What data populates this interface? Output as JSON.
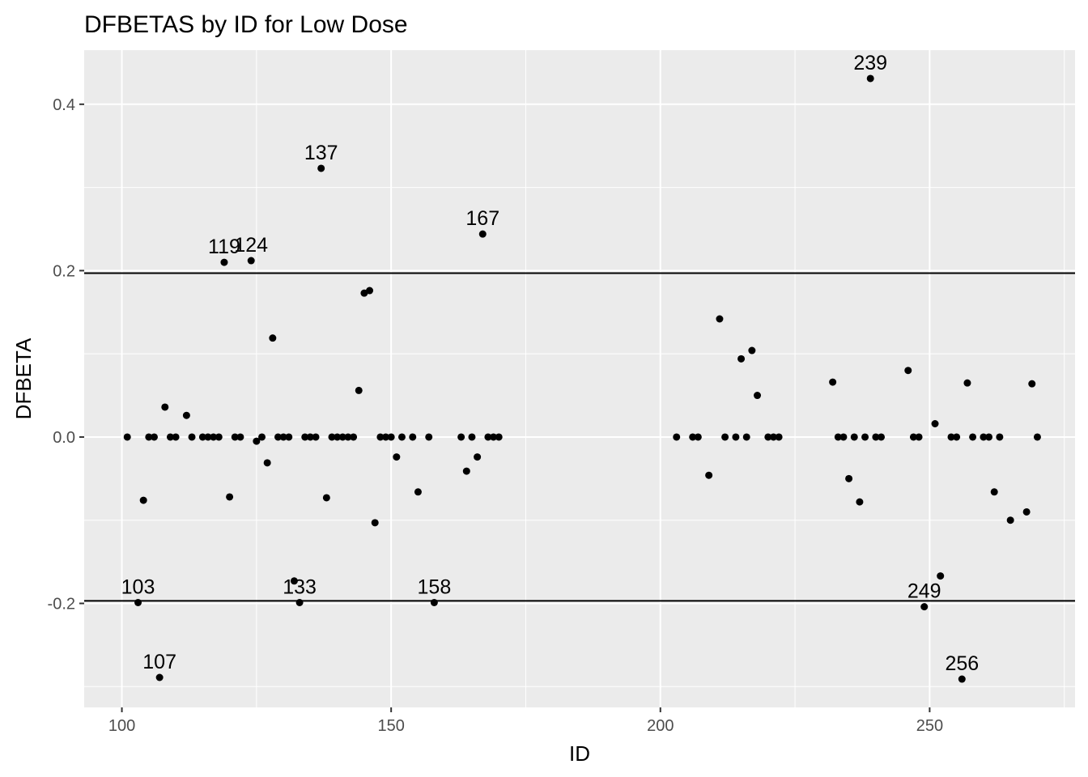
{
  "chart_data": {
    "type": "scatter",
    "title": "DFBETAS by ID for Low Dose",
    "xlabel": "ID",
    "ylabel": "DFBETA",
    "xlim": [
      93,
      277
    ],
    "ylim": [
      -0.325,
      0.465
    ],
    "x_ticks": [
      100,
      150,
      200,
      250
    ],
    "x_tick_labels": [
      "100",
      "150",
      "200",
      "250"
    ],
    "y_ticks": [
      -0.2,
      0.0,
      0.2,
      0.4
    ],
    "y_tick_labels": [
      "-0.2",
      "0.0",
      "0.2",
      "0.4"
    ],
    "grid": true,
    "point_color": "#000000",
    "panel_background": "#ebebeb",
    "grid_color": "#ffffff",
    "reference_lines": [
      0.197,
      -0.197
    ],
    "points": [
      {
        "x": 101,
        "y": 0.0
      },
      {
        "x": 103,
        "y": -0.199
      },
      {
        "x": 104,
        "y": -0.076
      },
      {
        "x": 105,
        "y": 0.0
      },
      {
        "x": 106,
        "y": 0.0
      },
      {
        "x": 107,
        "y": -0.289
      },
      {
        "x": 108,
        "y": 0.036
      },
      {
        "x": 109,
        "y": 0.0
      },
      {
        "x": 110,
        "y": 0.0
      },
      {
        "x": 112,
        "y": 0.026
      },
      {
        "x": 113,
        "y": 0.0
      },
      {
        "x": 115,
        "y": 0.0
      },
      {
        "x": 116,
        "y": 0.0
      },
      {
        "x": 117,
        "y": 0.0
      },
      {
        "x": 118,
        "y": 0.0
      },
      {
        "x": 119,
        "y": 0.21
      },
      {
        "x": 120,
        "y": -0.072
      },
      {
        "x": 121,
        "y": 0.0
      },
      {
        "x": 122,
        "y": 0.0
      },
      {
        "x": 124,
        "y": 0.212
      },
      {
        "x": 125,
        "y": -0.005
      },
      {
        "x": 126,
        "y": 0.0
      },
      {
        "x": 127,
        "y": -0.031
      },
      {
        "x": 128,
        "y": 0.119
      },
      {
        "x": 129,
        "y": 0.0
      },
      {
        "x": 130,
        "y": 0.0
      },
      {
        "x": 131,
        "y": 0.0
      },
      {
        "x": 132,
        "y": -0.173
      },
      {
        "x": 133,
        "y": -0.199
      },
      {
        "x": 134,
        "y": 0.0
      },
      {
        "x": 135,
        "y": 0.0
      },
      {
        "x": 136,
        "y": 0.0
      },
      {
        "x": 137,
        "y": 0.323
      },
      {
        "x": 138,
        "y": -0.073
      },
      {
        "x": 139,
        "y": 0.0
      },
      {
        "x": 140,
        "y": 0.0
      },
      {
        "x": 141,
        "y": 0.0
      },
      {
        "x": 142,
        "y": 0.0
      },
      {
        "x": 143,
        "y": 0.0
      },
      {
        "x": 144,
        "y": 0.056
      },
      {
        "x": 145,
        "y": 0.173
      },
      {
        "x": 146,
        "y": 0.176
      },
      {
        "x": 147,
        "y": -0.103
      },
      {
        "x": 148,
        "y": 0.0
      },
      {
        "x": 149,
        "y": 0.0
      },
      {
        "x": 150,
        "y": 0.0
      },
      {
        "x": 151,
        "y": -0.024
      },
      {
        "x": 152,
        "y": 0.0
      },
      {
        "x": 154,
        "y": 0.0
      },
      {
        "x": 155,
        "y": -0.066
      },
      {
        "x": 157,
        "y": 0.0
      },
      {
        "x": 158,
        "y": -0.199
      },
      {
        "x": 163,
        "y": 0.0
      },
      {
        "x": 164,
        "y": -0.041
      },
      {
        "x": 165,
        "y": 0.0
      },
      {
        "x": 166,
        "y": -0.024
      },
      {
        "x": 167,
        "y": 0.244
      },
      {
        "x": 168,
        "y": 0.0
      },
      {
        "x": 169,
        "y": 0.0
      },
      {
        "x": 170,
        "y": 0.0
      },
      {
        "x": 203,
        "y": 0.0
      },
      {
        "x": 206,
        "y": 0.0
      },
      {
        "x": 207,
        "y": 0.0
      },
      {
        "x": 209,
        "y": -0.046
      },
      {
        "x": 211,
        "y": 0.142
      },
      {
        "x": 212,
        "y": 0.0
      },
      {
        "x": 214,
        "y": 0.0
      },
      {
        "x": 215,
        "y": 0.094
      },
      {
        "x": 216,
        "y": 0.0
      },
      {
        "x": 217,
        "y": 0.104
      },
      {
        "x": 218,
        "y": 0.05
      },
      {
        "x": 220,
        "y": 0.0
      },
      {
        "x": 221,
        "y": 0.0
      },
      {
        "x": 222,
        "y": 0.0
      },
      {
        "x": 232,
        "y": 0.066
      },
      {
        "x": 233,
        "y": 0.0
      },
      {
        "x": 234,
        "y": 0.0
      },
      {
        "x": 235,
        "y": -0.05
      },
      {
        "x": 236,
        "y": 0.0
      },
      {
        "x": 237,
        "y": -0.078
      },
      {
        "x": 238,
        "y": 0.0
      },
      {
        "x": 239,
        "y": 0.431
      },
      {
        "x": 240,
        "y": 0.0
      },
      {
        "x": 241,
        "y": 0.0
      },
      {
        "x": 246,
        "y": 0.08
      },
      {
        "x": 247,
        "y": 0.0
      },
      {
        "x": 248,
        "y": 0.0
      },
      {
        "x": 249,
        "y": -0.204
      },
      {
        "x": 251,
        "y": 0.016
      },
      {
        "x": 252,
        "y": -0.167
      },
      {
        "x": 254,
        "y": 0.0
      },
      {
        "x": 255,
        "y": 0.0
      },
      {
        "x": 256,
        "y": -0.291
      },
      {
        "x": 257,
        "y": 0.065
      },
      {
        "x": 258,
        "y": 0.0
      },
      {
        "x": 260,
        "y": 0.0
      },
      {
        "x": 261,
        "y": 0.0
      },
      {
        "x": 262,
        "y": -0.066
      },
      {
        "x": 263,
        "y": 0.0
      },
      {
        "x": 265,
        "y": -0.1
      },
      {
        "x": 268,
        "y": -0.09
      },
      {
        "x": 269,
        "y": 0.064
      },
      {
        "x": 270,
        "y": 0.0
      }
    ],
    "annotations": [
      {
        "x": 103,
        "y": -0.199,
        "text": "103"
      },
      {
        "x": 107,
        "y": -0.289,
        "text": "107"
      },
      {
        "x": 119,
        "y": 0.21,
        "text": "119"
      },
      {
        "x": 124,
        "y": 0.212,
        "text": "124"
      },
      {
        "x": 133,
        "y": -0.199,
        "text": "133"
      },
      {
        "x": 137,
        "y": 0.323,
        "text": "137"
      },
      {
        "x": 158,
        "y": -0.199,
        "text": "158"
      },
      {
        "x": 167,
        "y": 0.244,
        "text": "167"
      },
      {
        "x": 239,
        "y": 0.431,
        "text": "239"
      },
      {
        "x": 249,
        "y": -0.204,
        "text": "249"
      },
      {
        "x": 256,
        "y": -0.291,
        "text": "256"
      }
    ]
  }
}
